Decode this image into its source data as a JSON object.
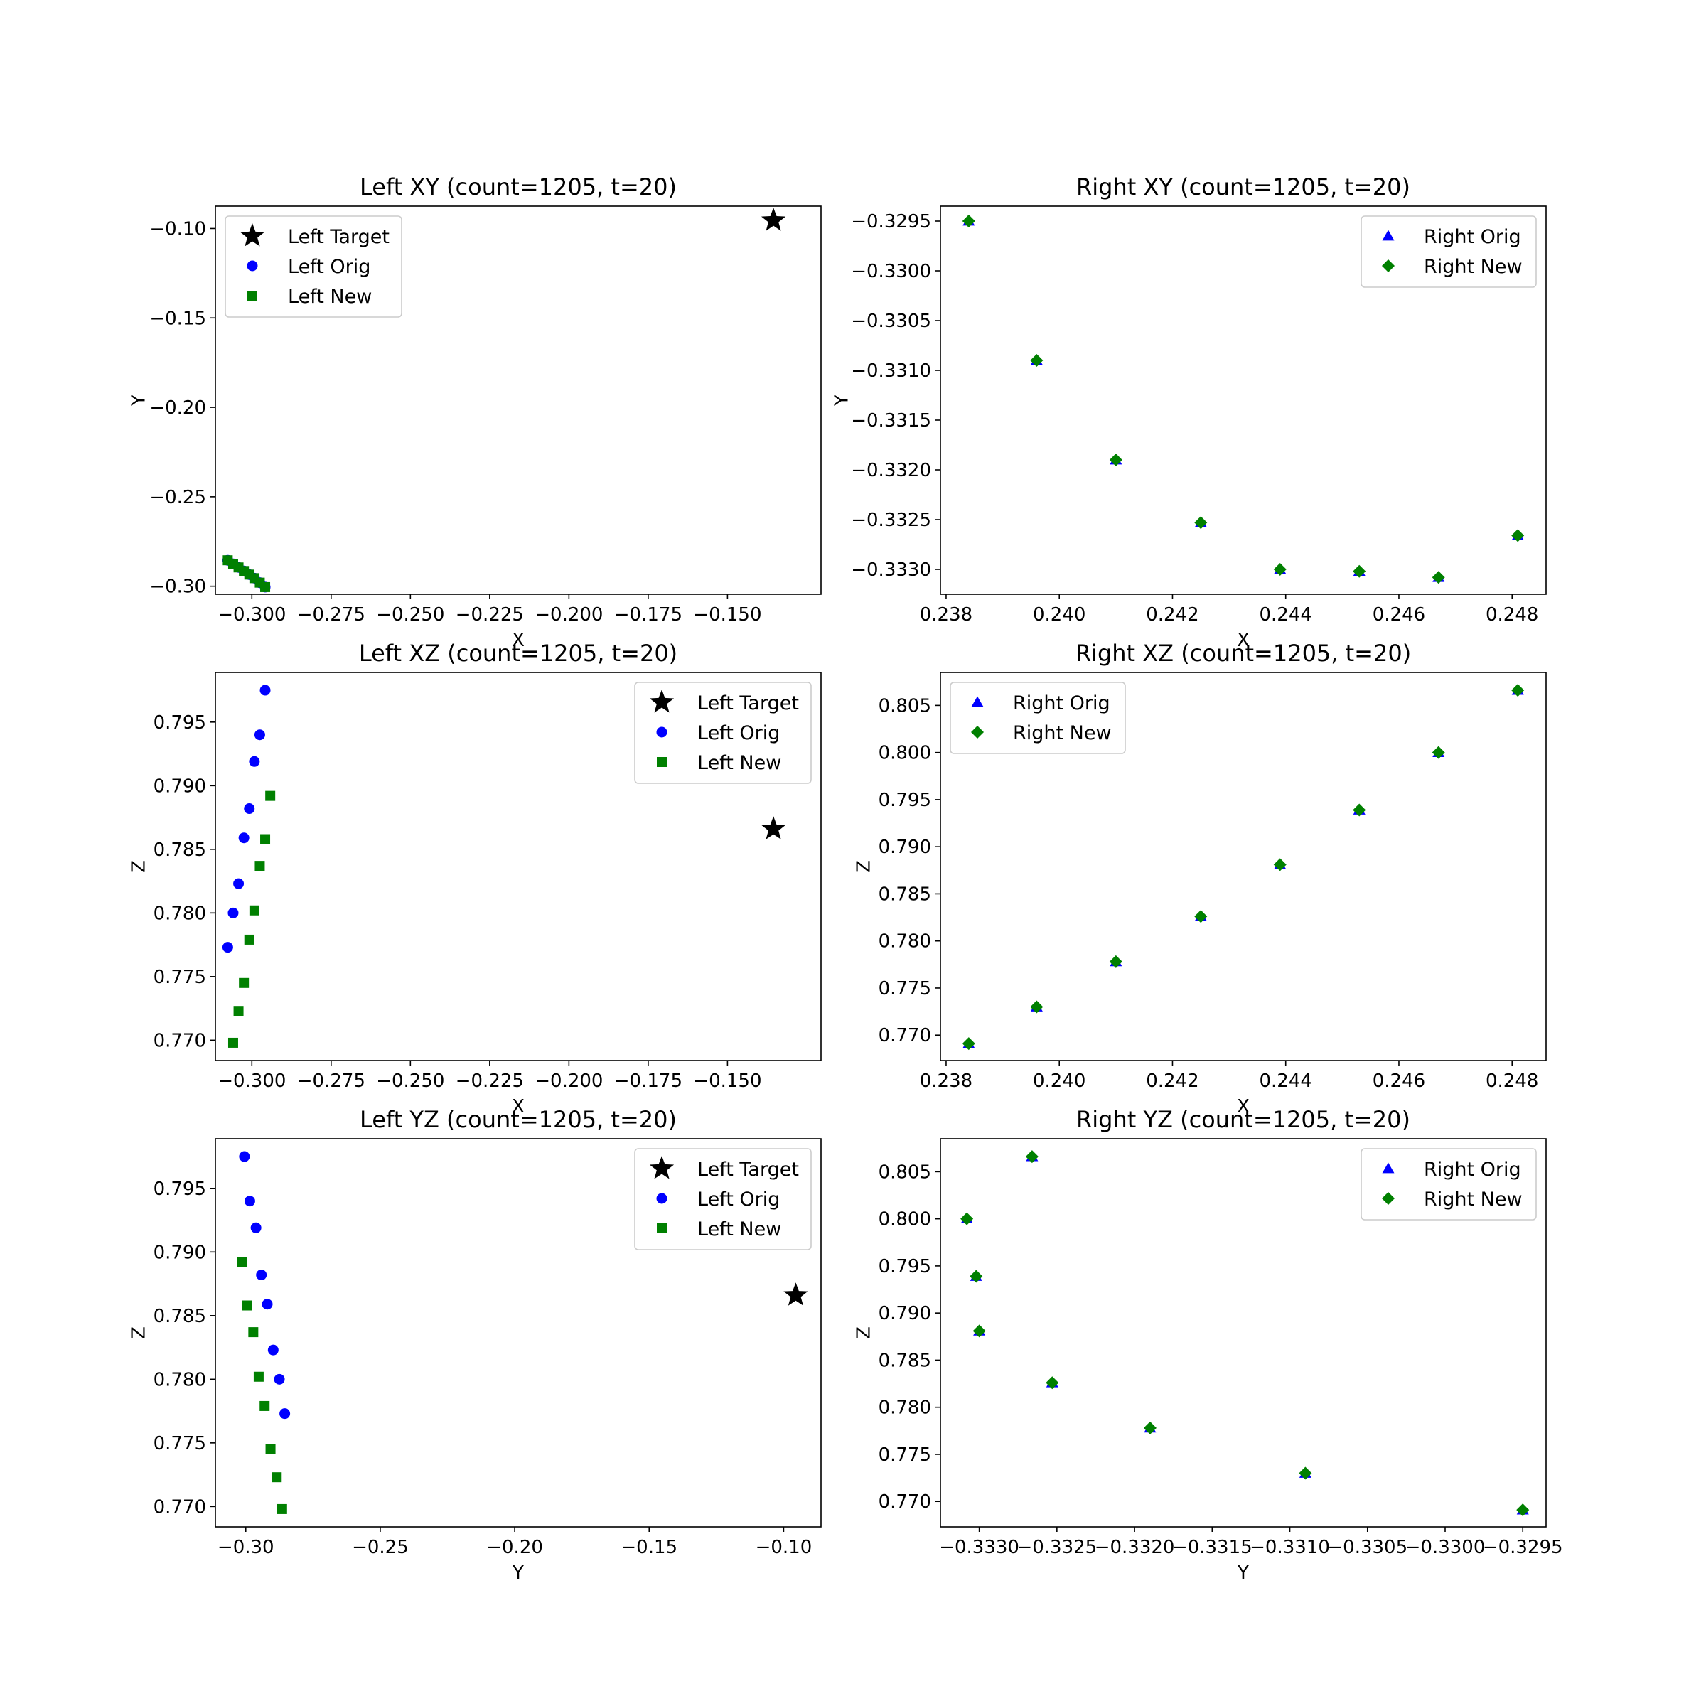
{
  "colors": {
    "target": "#000000",
    "orig": "#0000ff",
    "new": "#008000",
    "axes": "#000000",
    "legend_border": "#cccccc"
  },
  "chart_data": [
    {
      "id": "left-xy",
      "type": "scatter",
      "title": "Left XY (count=1205, t=20)",
      "xlabel": "X",
      "ylabel": "Y",
      "xlim": [
        -0.3115,
        -0.1205
      ],
      "ylim": [
        -0.3045,
        -0.0875
      ],
      "xticks": [
        -0.3,
        -0.275,
        -0.25,
        -0.225,
        -0.2,
        -0.175,
        -0.15
      ],
      "xtick_labels": [
        "−0.300",
        "−0.275",
        "−0.250",
        "−0.225",
        "−0.200",
        "−0.175",
        "−0.150"
      ],
      "yticks": [
        -0.3,
        -0.25,
        -0.2,
        -0.15,
        -0.1
      ],
      "ytick_labels": [
        "−0.30",
        "−0.25",
        "−0.20",
        "−0.15",
        "−0.10"
      ],
      "legend": "top-left",
      "grid": false,
      "series": [
        {
          "name": "Left Target",
          "marker": "star",
          "color": "#000000",
          "x": [
            -0.1355
          ],
          "y": [
            -0.0955
          ]
        },
        {
          "name": "Left Orig",
          "marker": "circle",
          "color": "#0000ff",
          "x": [
            -0.3076,
            -0.3059,
            -0.3042,
            -0.3025,
            -0.3008,
            -0.2992,
            -0.2975,
            -0.2958
          ],
          "y": [
            -0.2855,
            -0.2875,
            -0.2895,
            -0.2915,
            -0.2935,
            -0.2955,
            -0.298,
            -0.3005
          ]
        },
        {
          "name": "Left New",
          "marker": "square",
          "color": "#008000",
          "x": [
            -0.3076,
            -0.3059,
            -0.3042,
            -0.3025,
            -0.3008,
            -0.2992,
            -0.2975,
            -0.2958
          ],
          "y": [
            -0.2855,
            -0.2875,
            -0.2895,
            -0.2915,
            -0.2935,
            -0.2955,
            -0.298,
            -0.3005
          ]
        }
      ]
    },
    {
      "id": "right-xy",
      "type": "scatter",
      "title": "Right XY (count=1205, t=20)",
      "xlabel": "X",
      "ylabel": "Y",
      "xlim": [
        0.2379,
        0.2486
      ],
      "ylim": [
        -0.33325,
        -0.32935
      ],
      "xticks": [
        0.238,
        0.24,
        0.242,
        0.244,
        0.246,
        0.248
      ],
      "xtick_labels": [
        "0.238",
        "0.240",
        "0.242",
        "0.244",
        "0.246",
        "0.248"
      ],
      "yticks": [
        -0.333,
        -0.3325,
        -0.332,
        -0.3315,
        -0.331,
        -0.3305,
        -0.33,
        -0.3295
      ],
      "ytick_labels": [
        "−0.3330",
        "−0.3325",
        "−0.3320",
        "−0.3315",
        "−0.3310",
        "−0.3305",
        "−0.3300",
        "−0.3295"
      ],
      "legend": "top-right",
      "grid": false,
      "series": [
        {
          "name": "Right Orig",
          "marker": "triangle",
          "color": "#0000ff",
          "x": [
            0.2384,
            0.2396,
            0.241,
            0.2425,
            0.2439,
            0.2453,
            0.2467,
            0.2481
          ],
          "y": [
            -0.3295,
            -0.3309,
            -0.3319,
            -0.33253,
            -0.333,
            -0.33302,
            -0.33308,
            -0.33266
          ]
        },
        {
          "name": "Right New",
          "marker": "diamond",
          "color": "#008000",
          "x": [
            0.2384,
            0.2396,
            0.241,
            0.2425,
            0.2439,
            0.2453,
            0.2467,
            0.2481
          ],
          "y": [
            -0.3295,
            -0.3309,
            -0.3319,
            -0.33253,
            -0.333,
            -0.33302,
            -0.33308,
            -0.33266
          ]
        }
      ]
    },
    {
      "id": "left-xz",
      "type": "scatter",
      "title": "Left XZ (count=1205, t=20)",
      "xlabel": "X",
      "ylabel": "Z",
      "xlim": [
        -0.3115,
        -0.1205
      ],
      "ylim": [
        0.7684,
        0.7989
      ],
      "xticks": [
        -0.3,
        -0.275,
        -0.25,
        -0.225,
        -0.2,
        -0.175,
        -0.15
      ],
      "xtick_labels": [
        "−0.300",
        "−0.275",
        "−0.250",
        "−0.225",
        "−0.200",
        "−0.175",
        "−0.150"
      ],
      "yticks": [
        0.77,
        0.775,
        0.78,
        0.785,
        0.79,
        0.795
      ],
      "ytick_labels": [
        "0.770",
        "0.775",
        "0.780",
        "0.785",
        "0.790",
        "0.795"
      ],
      "legend": "top-right",
      "grid": false,
      "series": [
        {
          "name": "Left Target",
          "marker": "star",
          "color": "#000000",
          "x": [
            -0.1355
          ],
          "y": [
            0.7866
          ]
        },
        {
          "name": "Left Orig",
          "marker": "circle",
          "color": "#0000ff",
          "x": [
            -0.3076,
            -0.3059,
            -0.3042,
            -0.3025,
            -0.3008,
            -0.2992,
            -0.2975,
            -0.2958
          ],
          "y": [
            0.7773,
            0.78,
            0.7823,
            0.7859,
            0.7882,
            0.7919,
            0.794,
            0.7975
          ]
        },
        {
          "name": "Left New",
          "marker": "square",
          "color": "#008000",
          "x": [
            -0.3059,
            -0.3042,
            -0.3025,
            -0.3008,
            -0.2992,
            -0.2975,
            -0.2958,
            -0.2942
          ],
          "y": [
            0.7698,
            0.7723,
            0.7745,
            0.7779,
            0.7802,
            0.7837,
            0.7858,
            0.7892
          ]
        }
      ]
    },
    {
      "id": "right-xz",
      "type": "scatter",
      "title": "Right XZ (count=1205, t=20)",
      "xlabel": "X",
      "ylabel": "Z",
      "xlim": [
        0.2379,
        0.2486
      ],
      "ylim": [
        0.7673,
        0.8085
      ],
      "xticks": [
        0.238,
        0.24,
        0.242,
        0.244,
        0.246,
        0.248
      ],
      "xtick_labels": [
        "0.238",
        "0.240",
        "0.242",
        "0.244",
        "0.246",
        "0.248"
      ],
      "yticks": [
        0.77,
        0.775,
        0.78,
        0.785,
        0.79,
        0.795,
        0.8,
        0.805
      ],
      "ytick_labels": [
        "0.770",
        "0.775",
        "0.780",
        "0.785",
        "0.790",
        "0.795",
        "0.800",
        "0.805"
      ],
      "legend": "top-left",
      "grid": false,
      "series": [
        {
          "name": "Right Orig",
          "marker": "triangle",
          "color": "#0000ff",
          "x": [
            0.2384,
            0.2396,
            0.241,
            0.2425,
            0.2439,
            0.2453,
            0.2467,
            0.2481
          ],
          "y": [
            0.7691,
            0.773,
            0.7778,
            0.7826,
            0.7881,
            0.7939,
            0.8,
            0.8066
          ]
        },
        {
          "name": "Right New",
          "marker": "diamond",
          "color": "#008000",
          "x": [
            0.2384,
            0.2396,
            0.241,
            0.2425,
            0.2439,
            0.2453,
            0.2467,
            0.2481
          ],
          "y": [
            0.7691,
            0.773,
            0.7778,
            0.7826,
            0.7881,
            0.7939,
            0.8,
            0.8066
          ]
        }
      ]
    },
    {
      "id": "left-yz",
      "type": "scatter",
      "title": "Left YZ (count=1205, t=20)",
      "xlabel": "Y",
      "ylabel": "Z",
      "xlim": [
        -0.3113,
        -0.0861
      ],
      "ylim": [
        0.7684,
        0.7989
      ],
      "xticks": [
        -0.3,
        -0.25,
        -0.2,
        -0.15,
        -0.1
      ],
      "xtick_labels": [
        "−0.30",
        "−0.25",
        "−0.20",
        "−0.15",
        "−0.10"
      ],
      "yticks": [
        0.77,
        0.775,
        0.78,
        0.785,
        0.79,
        0.795
      ],
      "ytick_labels": [
        "0.770",
        "0.775",
        "0.780",
        "0.785",
        "0.790",
        "0.795"
      ],
      "legend": "top-right",
      "grid": false,
      "series": [
        {
          "name": "Left Target",
          "marker": "star",
          "color": "#000000",
          "x": [
            -0.0955
          ],
          "y": [
            0.7866
          ]
        },
        {
          "name": "Left Orig",
          "marker": "circle",
          "color": "#0000ff",
          "x": [
            -0.3005,
            -0.2985,
            -0.2962,
            -0.2942,
            -0.292,
            -0.2898,
            -0.2875,
            -0.2855
          ],
          "y": [
            0.7975,
            0.794,
            0.7919,
            0.7882,
            0.7859,
            0.7823,
            0.78,
            0.7773
          ]
        },
        {
          "name": "Left New",
          "marker": "square",
          "color": "#008000",
          "x": [
            -0.3015,
            -0.2995,
            -0.2972,
            -0.2952,
            -0.293,
            -0.2908,
            -0.2885,
            -0.2865
          ],
          "y": [
            0.7892,
            0.7858,
            0.7837,
            0.7802,
            0.7779,
            0.7745,
            0.7723,
            0.7698
          ]
        }
      ]
    },
    {
      "id": "right-yz",
      "type": "scatter",
      "title": "Right YZ (count=1205, t=20)",
      "xlabel": "Y",
      "ylabel": "Z",
      "xlim": [
        -0.33325,
        -0.32935
      ],
      "ylim": [
        0.7673,
        0.8085
      ],
      "xticks": [
        -0.333,
        -0.3325,
        -0.332,
        -0.3315,
        -0.331,
        -0.3305,
        -0.33,
        -0.3295
      ],
      "xtick_labels": [
        "−0.3330",
        "−0.3325",
        "−0.3320",
        "−0.3315",
        "−0.3310",
        "−0.3305",
        "−0.3300",
        "−0.3295"
      ],
      "yticks": [
        0.77,
        0.775,
        0.78,
        0.785,
        0.79,
        0.795,
        0.8,
        0.805
      ],
      "ytick_labels": [
        "0.770",
        "0.775",
        "0.780",
        "0.785",
        "0.790",
        "0.795",
        "0.800",
        "0.805"
      ],
      "legend": "top-right",
      "grid": false,
      "series": [
        {
          "name": "Right Orig",
          "marker": "triangle",
          "color": "#0000ff",
          "x": [
            -0.3295,
            -0.3309,
            -0.3319,
            -0.33253,
            -0.333,
            -0.33302,
            -0.33308,
            -0.33266
          ],
          "y": [
            0.7691,
            0.773,
            0.7778,
            0.7826,
            0.7881,
            0.7939,
            0.8,
            0.8066
          ]
        },
        {
          "name": "Right New",
          "marker": "diamond",
          "color": "#008000",
          "x": [
            -0.3295,
            -0.3309,
            -0.3319,
            -0.33253,
            -0.333,
            -0.33302,
            -0.33308,
            -0.33266
          ],
          "y": [
            0.7691,
            0.773,
            0.7778,
            0.7826,
            0.7881,
            0.7939,
            0.8,
            0.8066
          ]
        }
      ]
    }
  ]
}
